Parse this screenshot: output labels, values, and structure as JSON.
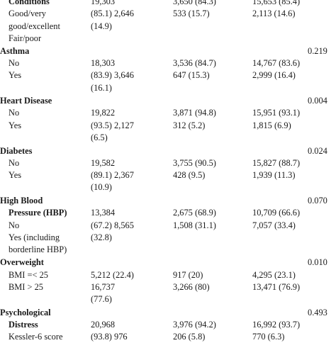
{
  "table": {
    "cut_top": {
      "label": "Conditions",
      "col1": "19,303",
      "col2": "3,650 (84.3)",
      "col3": "15,653 (85.4)"
    },
    "health_rows": [
      {
        "label": "Good/very",
        "col1": "(85.1) 2,646",
        "col2": "533 (15.7)",
        "col3": "2,113 (14.6)"
      },
      {
        "label": "good/excellent",
        "col1": "(14.9)"
      },
      {
        "label": "Fair/poor"
      }
    ],
    "sections": [
      {
        "title": "Asthma",
        "p": "0.219",
        "rows": [
          {
            "label": "No",
            "col1": "18,303",
            "col2": "3,536 (84.7)",
            "col3": "14,767 (83.6)"
          },
          {
            "label": "Yes",
            "col1": "(83.9) 3,646",
            "col2": "647 (15.3)",
            "col3": "2,999 (16.4)"
          },
          {
            "label": "",
            "col1": "(16.1)"
          }
        ]
      },
      {
        "title": "Heart Disease",
        "p": "0.004",
        "rows": [
          {
            "label": "No",
            "col1": "19,822",
            "col2": "3,871 (94.8)",
            "col3": "15,951 (93.1)"
          },
          {
            "label": "Yes",
            "col1": "(93.5) 2,127",
            "col2": "312 (5.2)",
            "col3": "1,815 (6.9)"
          },
          {
            "label": "",
            "col1": "(6.5)"
          }
        ]
      },
      {
        "title": "Diabetes",
        "p": "0.024",
        "rows": [
          {
            "label": "No",
            "col1": "19,582",
            "col2": "3,755 (90.5)",
            "col3": "15,827 (88.7)"
          },
          {
            "label": "Yes",
            "col1": "(89.1) 2,367",
            "col2": "428 (9.5)",
            "col3": "1,939 (11.3)"
          },
          {
            "label": "",
            "col1": "(10.9)"
          }
        ]
      },
      {
        "title": "High Blood",
        "p": "0.070",
        "rows": [
          {
            "label": "Pressure (HBP)",
            "bold": true,
            "col1": "13,384",
            "col2": "2,675 (68.9)",
            "col3": "10,709 (66.6)"
          },
          {
            "label": "No",
            "col1": "(67.2) 8,565",
            "col2": "1,508 (31.1)",
            "col3": "7,057 (33.4)"
          },
          {
            "label": "Yes (including",
            "col1": "(32.8)"
          },
          {
            "label": "borderline HBP)"
          }
        ]
      },
      {
        "title": "Overweight",
        "p": "0.010",
        "rows": [
          {
            "label": "BMI =< 25",
            "col1": "5,212 (22.4)",
            "col2": "917 (20)",
            "col3": "4,295 (23.1)"
          },
          {
            "label": "BMI > 25",
            "col1": "16,737",
            "col2": "3,266 (80)",
            "col3": "13,471 (76.9)"
          },
          {
            "label": "",
            "col1": "(77.6)"
          }
        ]
      },
      {
        "title": "Psychological",
        "p": "0.493",
        "rows": [
          {
            "label": "Distress",
            "bold": true,
            "col1": "20,968",
            "col2": "3,976 (94.2)",
            "col3": "16,992 (93.7)"
          },
          {
            "label": "Kessler-6 score",
            "col1": "(93.8) 976",
            "col2": "206 (5.8)",
            "col3": "770 (6.3)"
          }
        ]
      }
    ]
  }
}
